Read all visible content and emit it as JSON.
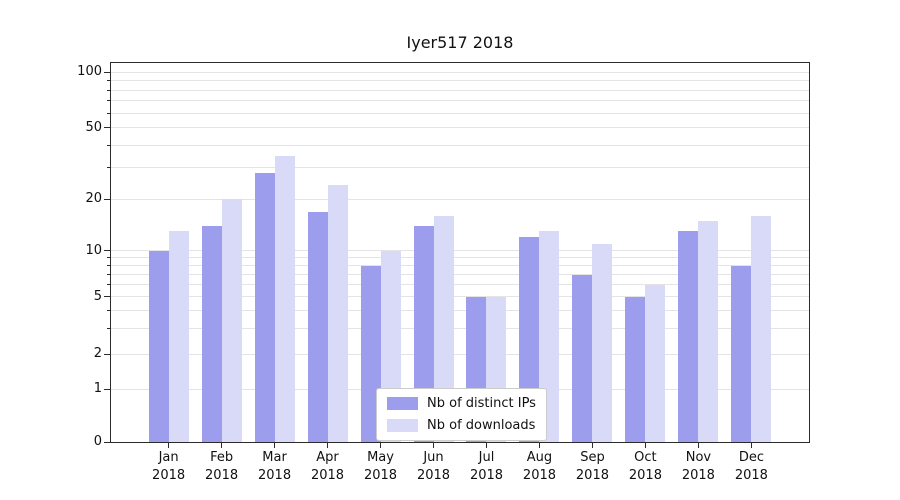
{
  "chart": {
    "title": "Iyer517 2018"
  },
  "chart_data": {
    "type": "bar",
    "title": "Iyer517 2018",
    "categories": [
      "Jan 2018",
      "Feb 2018",
      "Mar 2018",
      "Apr 2018",
      "May 2018",
      "Jun 2018",
      "Jul 2018",
      "Aug 2018",
      "Sep 2018",
      "Oct 2018",
      "Nov 2018",
      "Dec 2018"
    ],
    "series": [
      {
        "name": "Nb of distinct IPs",
        "color": "#9d9dee",
        "values": [
          10,
          14,
          28,
          17,
          8,
          14,
          5,
          12,
          7,
          5,
          13,
          8
        ]
      },
      {
        "name": "Nb of downloads",
        "color": "#d9d9f8",
        "values": [
          13,
          20,
          35,
          24,
          10,
          16,
          5,
          13,
          11,
          6,
          15,
          16
        ]
      }
    ],
    "xlabel": "",
    "ylabel": "",
    "yscale": "symlog",
    "ylim": [
      0,
      110
    ],
    "y_major_ticks": [
      0,
      1,
      2,
      5,
      10,
      20,
      50,
      100
    ],
    "y_minor_gridlines": [
      3,
      4,
      6,
      7,
      8,
      9,
      30,
      40,
      60,
      70,
      80,
      90
    ],
    "grid": true,
    "grid_color": "#e4e4e4",
    "legend_position": "lower center",
    "legend_border_color": "#cccccc"
  }
}
